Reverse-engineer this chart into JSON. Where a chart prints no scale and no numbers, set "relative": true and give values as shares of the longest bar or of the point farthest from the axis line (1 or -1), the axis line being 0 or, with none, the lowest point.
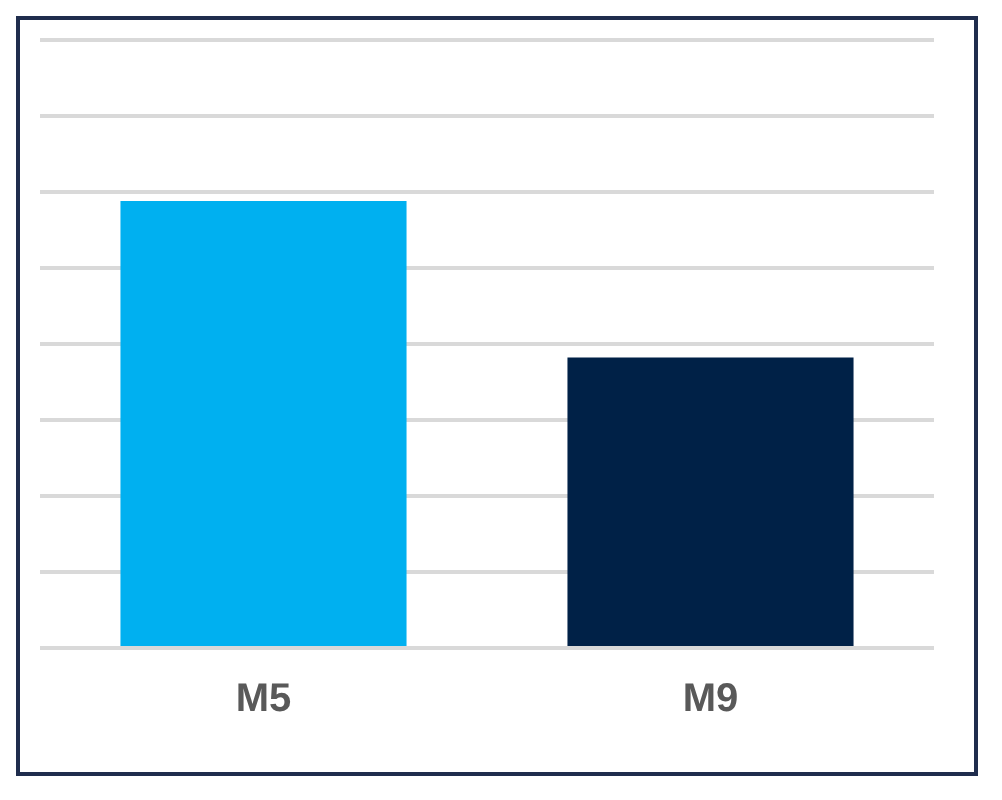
{
  "chart_data": {
    "type": "bar",
    "categories": [
      "M5",
      "M9"
    ],
    "values": [
      1,
      0.65
    ],
    "colors": [
      "#00b0f0",
      "#002147"
    ],
    "relative": true,
    "grid": "y",
    "legend": false
  }
}
